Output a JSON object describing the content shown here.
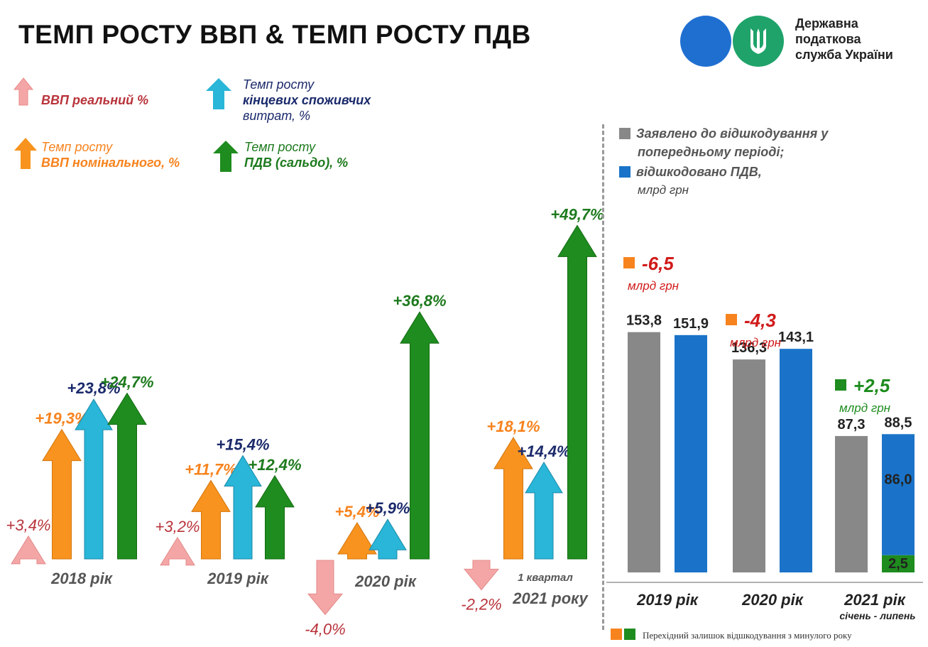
{
  "title": "ТЕМП РОСТУ ВВП & ТЕМП РОСТУ ПДВ",
  "logo": {
    "line1": "Державна",
    "line2": "податкова",
    "line3": "служба України",
    "icon": "trident-emblem-icon"
  },
  "legend": {
    "real_gdp": "ВВП реальний %",
    "consumer_1": "Темп росту",
    "consumer_2": "кінцевих споживчих",
    "consumer_3": "витрат, %",
    "nominal_1": "Темп росту",
    "nominal_2": "ВВП номінального, %",
    "vat_1": "Темп росту",
    "vat_2": "ПДВ (сальдо), %"
  },
  "colors": {
    "real_gdp": "#f4a6a6",
    "nominal_gdp": "#f7931e",
    "consumer": "#29b6d8",
    "vat": "#1e8c1e",
    "claimed": "#888888",
    "refunded": "#1a73c8",
    "legacy_orange": "#f7831e",
    "legacy_green": "#1e8c1e"
  },
  "chart_data": [
    {
      "type": "bar",
      "title": "",
      "categories": [
        "2018 рік",
        "2019 рік",
        "2020 рік",
        "1 квартал 2021 року"
      ],
      "series": [
        {
          "name": "ВВП реальний %",
          "values": [
            3.4,
            3.2,
            -4.0,
            -2.2
          ],
          "labels": [
            "+3,4%",
            "+3,2%",
            "-4,0%",
            "-2,2%"
          ]
        },
        {
          "name": "Темп росту ВВП номінального, %",
          "values": [
            19.3,
            11.7,
            5.4,
            18.1
          ],
          "labels": [
            "+19,3%",
            "+11,7%",
            "+5,4%",
            "+18,1%"
          ]
        },
        {
          "name": "Темп росту кінцевих споживчих витрат, %",
          "values": [
            23.8,
            15.4,
            5.9,
            14.4
          ],
          "labels": [
            "+23,8%",
            "+15,4%",
            "+5,9%",
            "+14,4%"
          ]
        },
        {
          "name": "Темп росту ПДВ (сальдо), %",
          "values": [
            24.7,
            12.4,
            36.8,
            49.7
          ],
          "labels": [
            "+24,7%",
            "+12,4%",
            "+36,8%",
            "+49,7%"
          ]
        }
      ],
      "category_labels": {
        "y2018": "2018 рік",
        "y2019": "2019 рік",
        "y2020": "2020 рік",
        "q1_line1": "1 квартал",
        "q1_line2": "2021 року"
      }
    },
    {
      "type": "bar",
      "categories": [
        "2019 рік",
        "2020 рік",
        "2021 рік"
      ],
      "category_sub": [
        "",
        "",
        "січень -  липень"
      ],
      "series": [
        {
          "name": "Заявлено до відшкодування у попередньому періоді;",
          "values": [
            153.8,
            136.3,
            87.3
          ],
          "labels": [
            "153,8",
            "136,3",
            "87,3"
          ]
        },
        {
          "name": "відшкодовано ПДВ,",
          "values": [
            151.9,
            143.1,
            88.5
          ],
          "labels": [
            "151,9",
            "143,1",
            "88,5"
          ]
        }
      ],
      "refunded_breakdown_2021": {
        "main": 86.0,
        "main_label": "86,0",
        "legacy": 2.5,
        "legacy_label": "2,5"
      },
      "differences": [
        {
          "label": "-6,5",
          "unit": "млрд грн",
          "color": "#d11a1a"
        },
        {
          "label": "-4,3",
          "unit": "млрд грн",
          "color": "#d11a1a"
        },
        {
          "label": "+2,5",
          "unit": "млрд грн",
          "color": "#1e8c1e"
        }
      ],
      "legend_1": "Заявлено до відшкодування у",
      "legend_2": "попередньому періоді;",
      "legend_3": "відшкодовано ПДВ,",
      "unit": "млрд грн",
      "footnote": "Перехідний залишок відшкодування з минулого року"
    }
  ]
}
